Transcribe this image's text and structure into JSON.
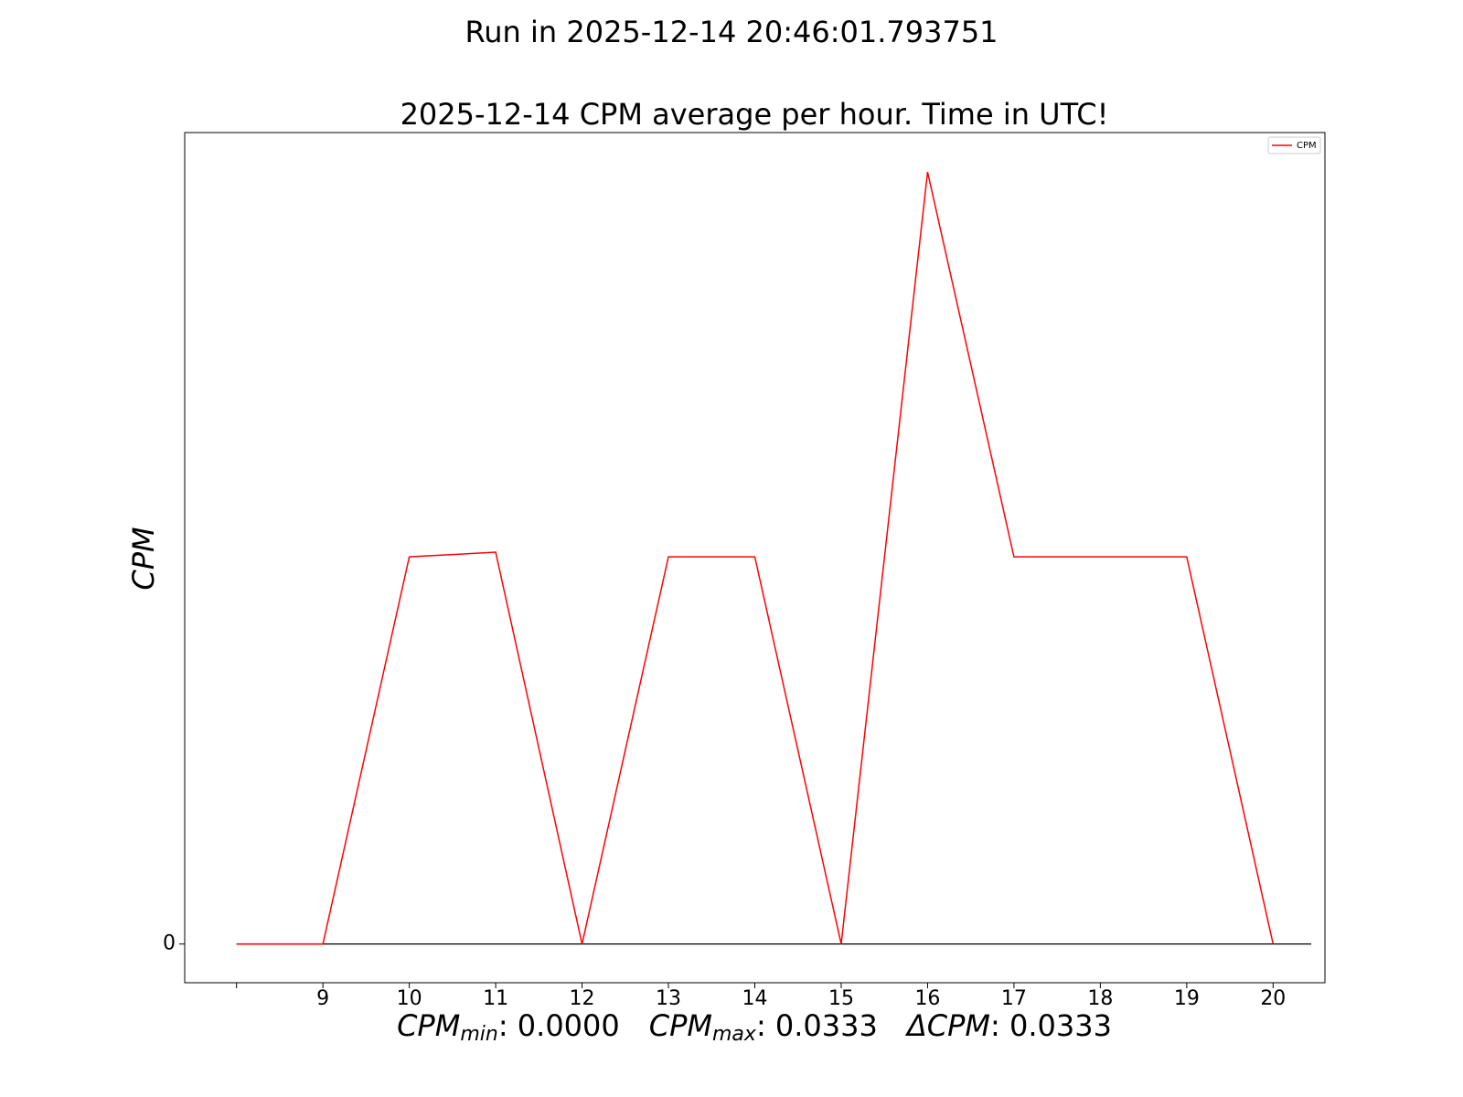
{
  "chart_data": {
    "type": "line",
    "suptitle": "Run in 2025-12-14 20:46:01.793751",
    "title": "2025-12-14 CPM average per hour. Time in UTC!",
    "ylabel": "CPM",
    "xlabel": [
      {
        "name": "CPM",
        "sub": "min",
        "value": ": 0.0000"
      },
      {
        "name": "CPM",
        "sub": "max",
        "value": ": 0.0333"
      },
      {
        "name": "ΔCPM",
        "value": ": 0.0333"
      }
    ],
    "x": [
      8,
      9,
      10,
      11,
      12,
      13,
      14,
      15,
      16,
      17,
      18,
      19,
      20
    ],
    "series": [
      {
        "name": "CPM",
        "color": "#ff0000",
        "values": [
          0,
          0,
          0.0167,
          0.0169,
          0,
          0.0167,
          0.0167,
          0,
          0.0333,
          0.0167,
          0.0167,
          0.0167,
          0
        ]
      }
    ],
    "xlim": [
      7.4,
      20.6
    ],
    "ylim": [
      -0.00167,
      0.035
    ],
    "xticks": [
      {
        "value": 8,
        "label": null
      },
      9,
      10,
      11,
      12,
      13,
      14,
      15,
      16,
      17,
      18,
      19,
      20
    ],
    "yticks": [
      0
    ],
    "zero_line_color": "#000000",
    "legend": "upper right",
    "grid": false
  }
}
